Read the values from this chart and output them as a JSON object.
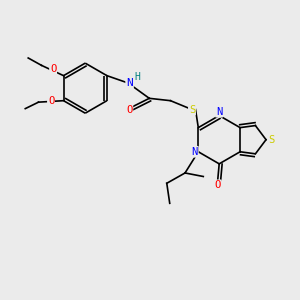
{
  "background_color": "#ebebeb",
  "bond_color": "#000000",
  "atom_colors": {
    "N": "#0000ff",
    "O": "#ff0000",
    "S": "#cccc00",
    "H": "#008080"
  },
  "lw": 1.2
}
